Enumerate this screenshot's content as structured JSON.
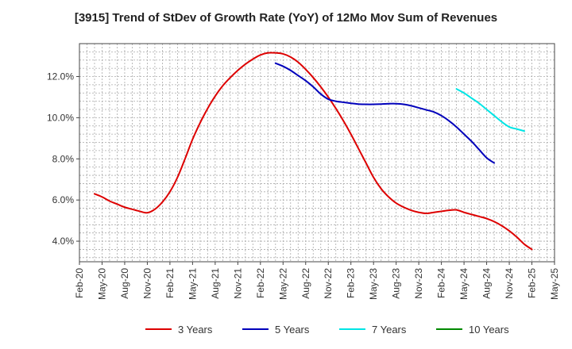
{
  "chart_data": {
    "type": "line",
    "title": "[3915]  Trend of StDev of Growth Rate (YoY) of 12Mo Mov Sum of Revenues",
    "xlabel": "",
    "ylabel": "",
    "ylim": [
      3.0,
      13.6
    ],
    "y_ticks": [
      4.0,
      6.0,
      8.0,
      10.0,
      12.0
    ],
    "y_tick_format": "percent_1dp",
    "x_start": "2020-02",
    "x_end": "2025-05",
    "x_tick_labels": [
      "Feb-20",
      "May-20",
      "Aug-20",
      "Nov-20",
      "Feb-21",
      "May-21",
      "Aug-21",
      "Nov-21",
      "Feb-22",
      "May-22",
      "Aug-22",
      "Nov-22",
      "Feb-23",
      "May-23",
      "Aug-23",
      "Nov-23",
      "Feb-24",
      "May-24",
      "Aug-24",
      "Nov-24",
      "Feb-25",
      "May-25"
    ],
    "grid": true,
    "legend_position": "bottom",
    "series": [
      {
        "name": "3 Years",
        "color": "#dd0000",
        "start": "2020-04",
        "values": [
          6.3,
          6.15,
          5.95,
          5.8,
          5.65,
          5.55,
          5.45,
          5.38,
          5.55,
          5.9,
          6.4,
          7.1,
          8.0,
          8.95,
          9.75,
          10.45,
          11.05,
          11.55,
          11.95,
          12.3,
          12.6,
          12.85,
          13.05,
          13.15,
          13.15,
          13.1,
          12.95,
          12.7,
          12.35,
          11.95,
          11.5,
          11.0,
          10.45,
          9.85,
          9.2,
          8.5,
          7.8,
          7.1,
          6.55,
          6.15,
          5.85,
          5.65,
          5.5,
          5.4,
          5.35,
          5.4,
          5.45,
          5.5,
          5.52,
          5.4,
          5.3,
          5.2,
          5.1,
          4.95,
          4.75,
          4.5,
          4.2,
          3.85,
          3.6
        ]
      },
      {
        "name": "5 Years",
        "color": "#0000bb",
        "start": "2022-04",
        "values": [
          12.65,
          12.5,
          12.3,
          12.05,
          11.8,
          11.5,
          11.15,
          10.9,
          10.8,
          10.75,
          10.7,
          10.66,
          10.65,
          10.65,
          10.66,
          10.68,
          10.68,
          10.65,
          10.58,
          10.48,
          10.38,
          10.28,
          10.1,
          9.85,
          9.55,
          9.2,
          8.85,
          8.45,
          8.05,
          7.8
        ]
      },
      {
        "name": "7 Years",
        "color": "#00e5e5",
        "start": "2024-04",
        "values": [
          11.4,
          11.2,
          10.95,
          10.7,
          10.4,
          10.1,
          9.8,
          9.55,
          9.45,
          9.35
        ]
      },
      {
        "name": "10 Years",
        "color": "#008800",
        "start": "2025-02",
        "values": []
      }
    ]
  }
}
